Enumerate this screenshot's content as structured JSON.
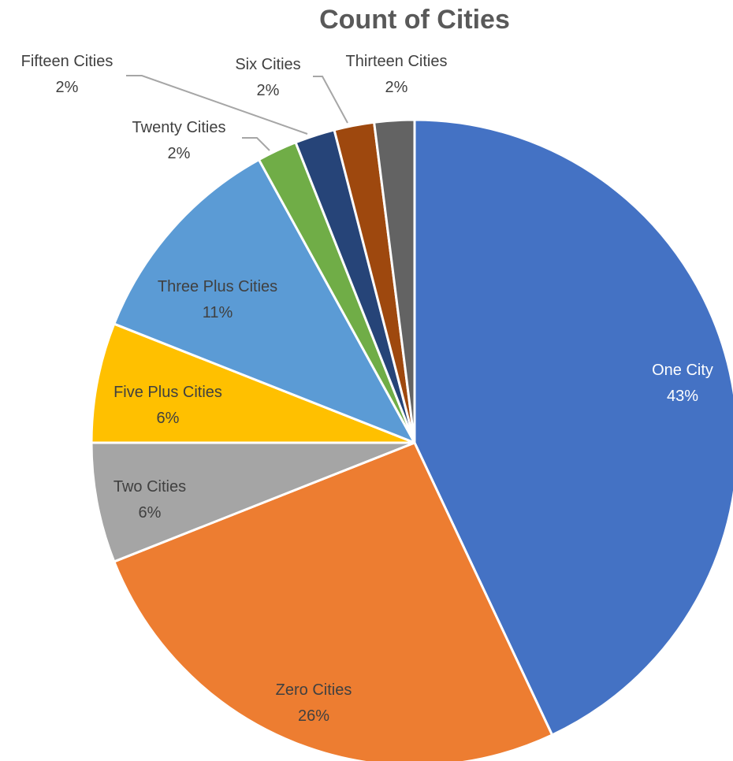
{
  "chart_data": {
    "type": "pie",
    "title": "Count of Cities",
    "start_angle_deg": 0,
    "direction": "clockwise",
    "slices": [
      {
        "label": "One City",
        "value": 43,
        "pct": "43%",
        "color": "#4472C4"
      },
      {
        "label": "Zero Cities",
        "value": 26,
        "pct": "26%",
        "color": "#ED7D31"
      },
      {
        "label": "Two Cities",
        "value": 6,
        "pct": "6%",
        "color": "#A5A5A5"
      },
      {
        "label": "Five Plus Cities",
        "value": 6,
        "pct": "6%",
        "color": "#FFC000"
      },
      {
        "label": "Three Plus Cities",
        "value": 11,
        "pct": "11%",
        "color": "#5B9BD5"
      },
      {
        "label": "Twenty Cities",
        "value": 2,
        "pct": "2%",
        "color": "#70AD47"
      },
      {
        "label": "Fifteen Cities",
        "value": 2,
        "pct": "2%",
        "color": "#264478"
      },
      {
        "label": "Six Cities",
        "value": 2,
        "pct": "2%",
        "color": "#9E480E"
      },
      {
        "label": "Thirteen Cities",
        "value": 2,
        "pct": "2%",
        "color": "#636363"
      }
    ]
  }
}
